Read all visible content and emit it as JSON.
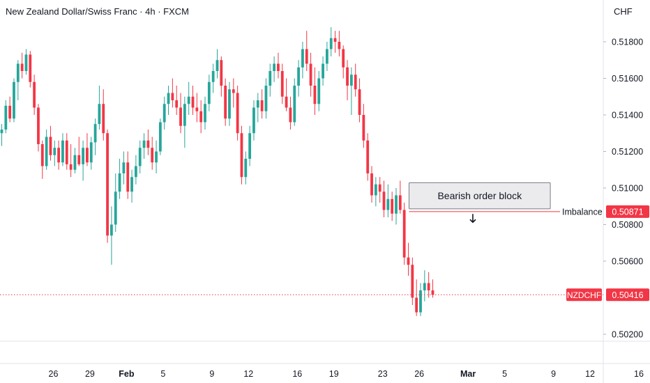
{
  "chart_data": {
    "type": "candlestick",
    "title": "New Zealand Dollar/Swiss Franc · 4h · FXCM",
    "symbol": "NZDCHF",
    "currency": "CHF",
    "y_ticks": [
      "0.51800",
      "0.51600",
      "0.51400",
      "0.51200",
      "0.51000",
      "0.50800",
      "0.50600",
      "0.50200"
    ],
    "ylim": [
      0.5012,
      0.5193
    ],
    "x_ticks": [
      {
        "label": "26",
        "index": 6,
        "bold": false
      },
      {
        "label": "29",
        "index": 15,
        "bold": false
      },
      {
        "label": "Feb",
        "index": 24,
        "bold": true
      },
      {
        "label": "5",
        "index": 33,
        "bold": false
      },
      {
        "label": "9",
        "index": 45,
        "bold": false
      },
      {
        "label": "12",
        "index": 54,
        "bold": false
      },
      {
        "label": "16",
        "index": 66,
        "bold": false
      },
      {
        "label": "19",
        "index": 75,
        "bold": false
      },
      {
        "label": "23",
        "index": 87,
        "bold": false
      },
      {
        "label": "26",
        "index": 96,
        "bold": false
      },
      {
        "label": "Mar",
        "index": 108,
        "bold": true
      },
      {
        "label": "5",
        "index": 117,
        "bold": false
      },
      {
        "label": "9",
        "index": 129,
        "bold": false
      },
      {
        "label": "12",
        "index": 138,
        "bold": false
      },
      {
        "label": "16",
        "index": 150,
        "bold": false
      }
    ],
    "candles": [
      [
        0.513,
        0.5135,
        0.5123,
        0.5132
      ],
      [
        0.5132,
        0.5148,
        0.513,
        0.5145
      ],
      [
        0.5145,
        0.515,
        0.5136,
        0.5138
      ],
      [
        0.5138,
        0.516,
        0.5136,
        0.5158
      ],
      [
        0.5158,
        0.517,
        0.5148,
        0.5168
      ],
      [
        0.5168,
        0.5174,
        0.516,
        0.5164
      ],
      [
        0.5164,
        0.5176,
        0.5162,
        0.5173
      ],
      [
        0.5173,
        0.5175,
        0.5155,
        0.5158
      ],
      [
        0.5158,
        0.5162,
        0.514,
        0.5144
      ],
      [
        0.5144,
        0.5146,
        0.512,
        0.5124
      ],
      [
        0.5124,
        0.5126,
        0.5105,
        0.5112
      ],
      [
        0.5112,
        0.5132,
        0.511,
        0.5128
      ],
      [
        0.5128,
        0.5134,
        0.5115,
        0.5118
      ],
      [
        0.5118,
        0.5126,
        0.5112,
        0.5122
      ],
      [
        0.5122,
        0.5126,
        0.511,
        0.5114
      ],
      [
        0.5114,
        0.513,
        0.5112,
        0.5126
      ],
      [
        0.5126,
        0.513,
        0.511,
        0.5113
      ],
      [
        0.5113,
        0.5124,
        0.5106,
        0.511
      ],
      [
        0.511,
        0.5122,
        0.5108,
        0.5118
      ],
      [
        0.5118,
        0.5128,
        0.5112,
        0.5113
      ],
      [
        0.5113,
        0.5126,
        0.5104,
        0.5122
      ],
      [
        0.5122,
        0.513,
        0.5112,
        0.5114
      ],
      [
        0.5114,
        0.5128,
        0.511,
        0.5125
      ],
      [
        0.5125,
        0.5138,
        0.5118,
        0.5135
      ],
      [
        0.5135,
        0.5156,
        0.5132,
        0.5146
      ],
      [
        0.5146,
        0.5154,
        0.5126,
        0.513
      ],
      [
        0.513,
        0.5132,
        0.507,
        0.5074
      ],
      [
        0.5074,
        0.509,
        0.5058,
        0.508
      ],
      [
        0.508,
        0.5108,
        0.5076,
        0.5098
      ],
      [
        0.5098,
        0.5116,
        0.5094,
        0.5108
      ],
      [
        0.5108,
        0.512,
        0.5102,
        0.5114
      ],
      [
        0.5114,
        0.512,
        0.5094,
        0.5098
      ],
      [
        0.5098,
        0.511,
        0.5092,
        0.5106
      ],
      [
        0.5106,
        0.5118,
        0.5102,
        0.5112
      ],
      [
        0.5112,
        0.5126,
        0.5108,
        0.5122
      ],
      [
        0.5122,
        0.513,
        0.5116,
        0.5126
      ],
      [
        0.5126,
        0.5132,
        0.5118,
        0.5122
      ],
      [
        0.5122,
        0.5128,
        0.511,
        0.5114
      ],
      [
        0.5114,
        0.5126,
        0.5108,
        0.512
      ],
      [
        0.512,
        0.5138,
        0.5118,
        0.5136
      ],
      [
        0.5136,
        0.515,
        0.5132,
        0.5146
      ],
      [
        0.5146,
        0.5156,
        0.514,
        0.5152
      ],
      [
        0.5152,
        0.516,
        0.5144,
        0.5148
      ],
      [
        0.5148,
        0.5156,
        0.514,
        0.5144
      ],
      [
        0.5144,
        0.5152,
        0.513,
        0.5134
      ],
      [
        0.5134,
        0.515,
        0.5122,
        0.5146
      ],
      [
        0.5146,
        0.5158,
        0.514,
        0.515
      ],
      [
        0.515,
        0.5156,
        0.514,
        0.5144
      ],
      [
        0.5144,
        0.5152,
        0.5136,
        0.5142
      ],
      [
        0.5142,
        0.5148,
        0.513,
        0.5136
      ],
      [
        0.5136,
        0.515,
        0.5132,
        0.5146
      ],
      [
        0.5146,
        0.5162,
        0.5142,
        0.5158
      ],
      [
        0.5158,
        0.5168,
        0.5152,
        0.5164
      ],
      [
        0.5164,
        0.5176,
        0.516,
        0.517
      ],
      [
        0.517,
        0.5172,
        0.515,
        0.5156
      ],
      [
        0.5156,
        0.516,
        0.5134,
        0.5138
      ],
      [
        0.5138,
        0.5158,
        0.5134,
        0.5154
      ],
      [
        0.5154,
        0.516,
        0.5144,
        0.5152
      ],
      [
        0.5152,
        0.5156,
        0.5126,
        0.513
      ],
      [
        0.513,
        0.5134,
        0.5102,
        0.5106
      ],
      [
        0.5106,
        0.512,
        0.5102,
        0.5116
      ],
      [
        0.5116,
        0.5134,
        0.5112,
        0.513
      ],
      [
        0.513,
        0.5148,
        0.5126,
        0.5144
      ],
      [
        0.5144,
        0.5152,
        0.5136,
        0.5148
      ],
      [
        0.5148,
        0.5154,
        0.5138,
        0.5142
      ],
      [
        0.5142,
        0.516,
        0.5138,
        0.5156
      ],
      [
        0.5156,
        0.5168,
        0.515,
        0.5164
      ],
      [
        0.5164,
        0.5172,
        0.5158,
        0.5168
      ],
      [
        0.5168,
        0.5174,
        0.516,
        0.5164
      ],
      [
        0.5164,
        0.5168,
        0.5146,
        0.515
      ],
      [
        0.515,
        0.516,
        0.5142,
        0.5144
      ],
      [
        0.5144,
        0.515,
        0.5132,
        0.5136
      ],
      [
        0.5136,
        0.516,
        0.5134,
        0.5156
      ],
      [
        0.5156,
        0.517,
        0.515,
        0.5166
      ],
      [
        0.5166,
        0.518,
        0.516,
        0.5176
      ],
      [
        0.5176,
        0.5186,
        0.5164,
        0.5168
      ],
      [
        0.5168,
        0.5174,
        0.515,
        0.5156
      ],
      [
        0.5156,
        0.5166,
        0.514,
        0.5146
      ],
      [
        0.5146,
        0.5164,
        0.5142,
        0.516
      ],
      [
        0.516,
        0.5172,
        0.5156,
        0.5168
      ],
      [
        0.5168,
        0.518,
        0.5164,
        0.5176
      ],
      [
        0.5176,
        0.5188,
        0.5172,
        0.5182
      ],
      [
        0.5182,
        0.5186,
        0.5174,
        0.518
      ],
      [
        0.518,
        0.5186,
        0.5172,
        0.5176
      ],
      [
        0.5176,
        0.5178,
        0.516,
        0.5166
      ],
      [
        0.5166,
        0.517,
        0.5148,
        0.5156
      ],
      [
        0.5156,
        0.5166,
        0.514,
        0.5162
      ],
      [
        0.5162,
        0.5168,
        0.515,
        0.5154
      ],
      [
        0.5154,
        0.516,
        0.5136,
        0.514
      ],
      [
        0.514,
        0.5146,
        0.5122,
        0.5126
      ],
      [
        0.5126,
        0.513,
        0.5104,
        0.5108
      ],
      [
        0.5108,
        0.5112,
        0.5092,
        0.5096
      ],
      [
        0.5096,
        0.5106,
        0.509,
        0.5102
      ],
      [
        0.5102,
        0.5106,
        0.5092,
        0.5098
      ],
      [
        0.5098,
        0.5104,
        0.5084,
        0.5088
      ],
      [
        0.5088,
        0.5102,
        0.5084,
        0.5094
      ],
      [
        0.5094,
        0.5098,
        0.5082,
        0.5086
      ],
      [
        0.5086,
        0.51,
        0.508,
        0.5096
      ],
      [
        0.5096,
        0.5104,
        0.5086,
        0.5088
      ],
      [
        0.5088,
        0.5092,
        0.5058,
        0.5062
      ],
      [
        0.5062,
        0.507,
        0.5052,
        0.5058
      ],
      [
        0.5058,
        0.5062,
        0.5036,
        0.504
      ],
      [
        0.504,
        0.505,
        0.503,
        0.5032
      ],
      [
        0.5032,
        0.5048,
        0.503,
        0.5044
      ],
      [
        0.5044,
        0.5055,
        0.5038,
        0.5048
      ],
      [
        0.5048,
        0.5054,
        0.504,
        0.5044
      ],
      [
        0.5044,
        0.505,
        0.504,
        0.50416
      ]
    ],
    "annotations": {
      "order_block_label": "Bearish order block",
      "order_block": {
        "index_start": 100,
        "index_end": 132,
        "price_top": 0.51014,
        "price_bottom": 0.50871
      },
      "imbalance_label": "Imbalance",
      "imbalance_price": 0.50871,
      "imbalance_value": "0.50871",
      "current_label": "NZDCHF",
      "current_price": 0.50416,
      "current_value": "0.50416",
      "arrow_index": 115,
      "arrow_price": 0.5082
    },
    "grid": false,
    "colors": {
      "up": "#26a69a",
      "down": "#f23645",
      "box_fill": "#ebebee",
      "box_stroke": "#787b86",
      "imbalance_line": "#f23645",
      "label_bg": "#f23645"
    }
  }
}
